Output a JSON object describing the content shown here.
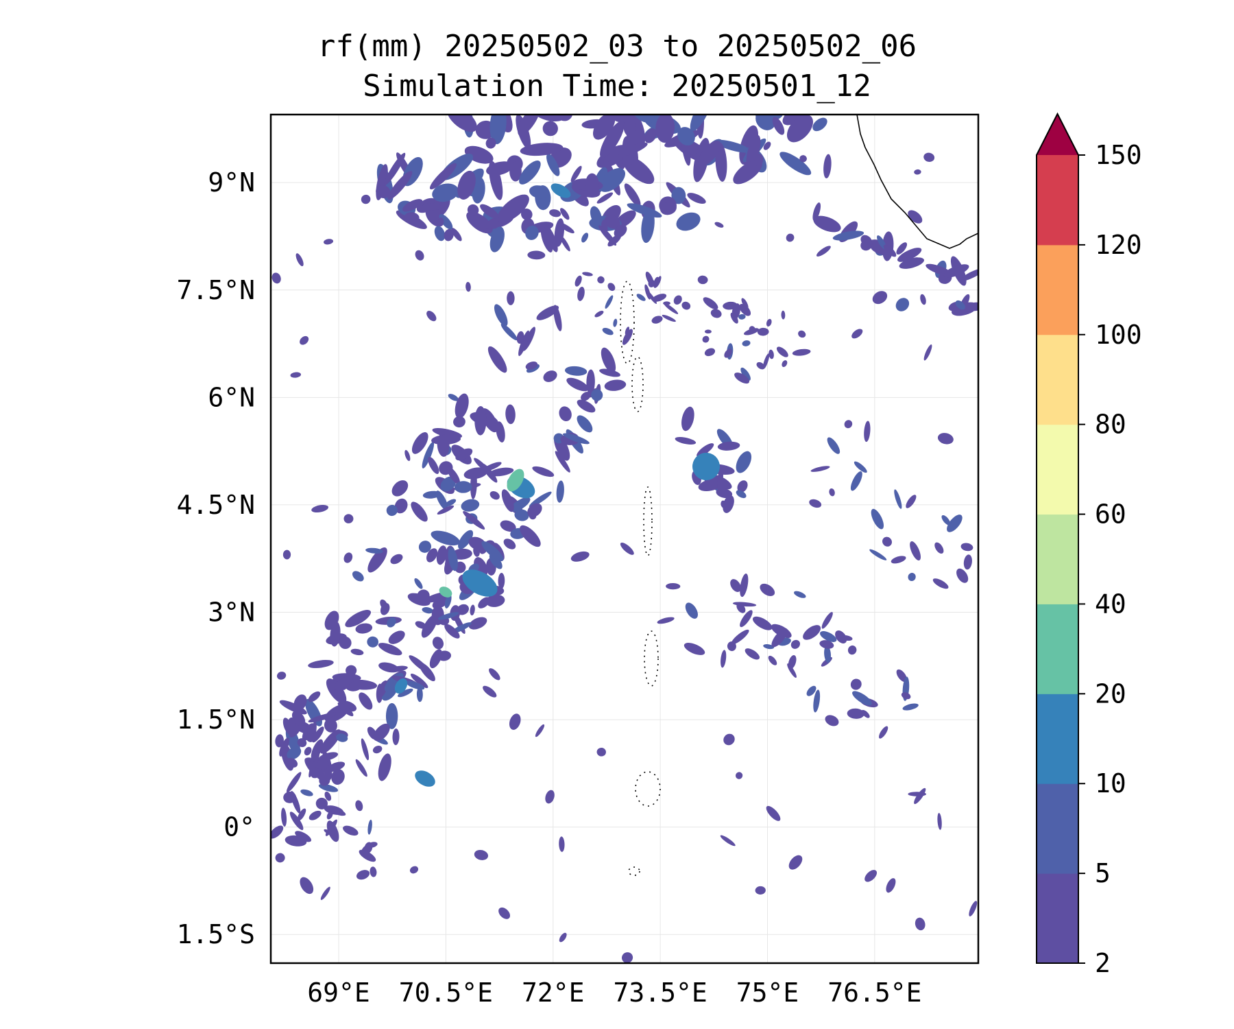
{
  "title": {
    "line1": "rf(mm) 20250502_03 to 20250502_06",
    "line2": "Simulation Time: 20250501_12"
  },
  "map": {
    "lat_labels": [
      "9°N",
      "7.5°N",
      "6°N",
      "4.5°N",
      "3°N",
      "1.5°N",
      "0°",
      "1.5°S"
    ],
    "lat_values": [
      9,
      7.5,
      6,
      4.5,
      3,
      1.5,
      0,
      -1.5
    ],
    "lon_labels": [
      "69°E",
      "70.5°E",
      "72°E",
      "73.5°E",
      "75°E",
      "76.5°E"
    ],
    "lon_values": [
      69,
      70.5,
      72,
      73.5,
      75,
      76.5
    ],
    "lon_range": [
      68.05,
      77.95
    ],
    "lat_range": [
      -1.9,
      9.95
    ]
  },
  "colorbar": {
    "levels": [
      "2",
      "5",
      "10",
      "20",
      "40",
      "60",
      "80",
      "100",
      "120",
      "150"
    ],
    "colors": [
      "#5e4fa2",
      "#4f61aa",
      "#3682ba",
      "#66c2a5",
      "#bee5a0",
      "#f3faad",
      "#fedf8b",
      "#fba05b",
      "#d53e4f",
      "#9e0142"
    ],
    "extend": "max"
  }
}
